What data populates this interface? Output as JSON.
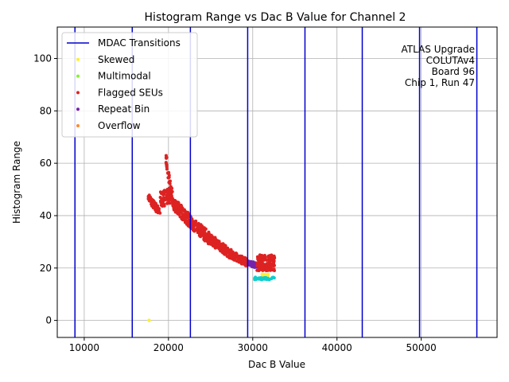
{
  "chart_data": {
    "type": "scatter",
    "title": "Histogram Range vs Dac B Value for Channel 2",
    "xlabel": "Dac B Value",
    "ylabel": "Histogram Range",
    "xlim": [
      6800,
      59000
    ],
    "ylim": [
      -6.5,
      112
    ],
    "xticks": [
      {
        "value": 10000,
        "label": "10000"
      },
      {
        "value": 20000,
        "label": "20000"
      },
      {
        "value": 30000,
        "label": "30000"
      },
      {
        "value": 40000,
        "label": "40000"
      },
      {
        "value": 50000,
        "label": "50000"
      }
    ],
    "yticks": [
      {
        "value": 0,
        "label": "0"
      },
      {
        "value": 20,
        "label": "20"
      },
      {
        "value": 40,
        "label": "40"
      },
      {
        "value": 60,
        "label": "60"
      },
      {
        "value": 80,
        "label": "80"
      },
      {
        "value": 100,
        "label": "100"
      }
    ],
    "grid": true,
    "legend_position": "top-left",
    "mdac_transitions": [
      8900,
      15700,
      22600,
      29400,
      36200,
      43000,
      49800,
      56600
    ],
    "series": [
      {
        "name": "MDAC Transitions",
        "kind": "line",
        "color": "#0000cc"
      },
      {
        "name": "Skewed",
        "kind": "marker",
        "color": "#ffee33"
      },
      {
        "name": "Multimodal",
        "kind": "marker",
        "color": "#88ee33"
      },
      {
        "name": "Flagged SEUs",
        "kind": "marker",
        "color": "#dd2222"
      },
      {
        "name": "Repeat Bin",
        "kind": "marker",
        "color": "#7722aa"
      },
      {
        "name": "Overflow",
        "kind": "marker",
        "color": "#ff8833"
      }
    ],
    "point_segments": [
      {
        "x_start": 17600,
        "x_end": 19000,
        "y_start": 47,
        "y_end": 41,
        "spread": 3,
        "count": 70,
        "color": "#dd2222"
      },
      {
        "x_start": 19000,
        "x_end": 20500,
        "y_start": 46,
        "y_end": 48,
        "spread": 6,
        "count": 80,
        "color": "#dd2222"
      },
      {
        "x_start": 19700,
        "x_end": 20500,
        "y_start": 62,
        "y_end": 45,
        "spread": 4,
        "count": 40,
        "color": "#dd2222"
      },
      {
        "x_start": 20500,
        "x_end": 22500,
        "y_start": 45,
        "y_end": 38,
        "spread": 5,
        "count": 110,
        "color": "#dd2222"
      },
      {
        "x_start": 22500,
        "x_end": 25000,
        "y_start": 38,
        "y_end": 31,
        "spread": 5,
        "count": 130,
        "color": "#dd2222"
      },
      {
        "x_start": 25000,
        "x_end": 27500,
        "y_start": 31,
        "y_end": 25,
        "spread": 4,
        "count": 130,
        "color": "#dd2222"
      },
      {
        "x_start": 27500,
        "x_end": 29400,
        "y_start": 25,
        "y_end": 22,
        "spread": 3,
        "count": 100,
        "color": "#dd2222"
      },
      {
        "x_start": 29400,
        "x_end": 30500,
        "y_start": 22,
        "y_end": 21,
        "spread": 2,
        "count": 50,
        "color": "#7722aa"
      },
      {
        "x_start": 30500,
        "x_end": 32600,
        "y_start": 22,
        "y_end": 22,
        "spread": 6,
        "count": 160,
        "color": "#dd2222"
      },
      {
        "x_start": 30200,
        "x_end": 32600,
        "y_start": 16,
        "y_end": 16,
        "spread": 1,
        "count": 40,
        "color": "#11cccc"
      },
      {
        "x_start": 31000,
        "x_end": 32000,
        "y_start": 17.5,
        "y_end": 17.5,
        "spread": 0.6,
        "count": 10,
        "color": "#ffee33"
      }
    ],
    "single_points": [
      {
        "x": 17700,
        "y": 0,
        "color": "#ffee33"
      }
    ],
    "annotation": [
      "ATLAS Upgrade",
      "COLUTAv4",
      "Board 96",
      "Chip 1, Run 47"
    ]
  }
}
